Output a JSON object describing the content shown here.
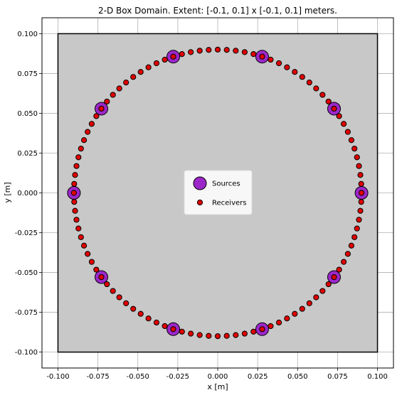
{
  "chart_data": {
    "type": "scatter",
    "title": "2-D Box Domain. Extent: [-0.1, 0.1] x [-0.1, 0.1] meters.",
    "xlabel": "x [m]",
    "ylabel": "y [m]",
    "xlim": [
      -0.11,
      0.11
    ],
    "ylim": [
      -0.11,
      0.11
    ],
    "xticks": [
      "-0.100",
      "-0.075",
      "-0.050",
      "-0.025",
      "0.000",
      "0.025",
      "0.050",
      "0.075",
      "0.100"
    ],
    "yticks": [
      "-0.100",
      "-0.075",
      "-0.050",
      "-0.025",
      "0.000",
      "0.025",
      "0.050",
      "0.075",
      "0.100"
    ],
    "grid": true,
    "domain_box": {
      "xmin": -0.1,
      "xmax": 0.1,
      "ymin": -0.1,
      "ymax": 0.1,
      "fill": "#c8c8c8",
      "edge": "#000000"
    },
    "legend": {
      "placement": "center",
      "entries": [
        "Sources",
        "Receivers"
      ]
    },
    "series": [
      {
        "name": "Sources",
        "marker": "circle-large",
        "color": "#9b27c9",
        "edge": "#000000",
        "layout": {
          "shape": "circle",
          "radius": 0.09,
          "count": 10,
          "start_angle_deg": 0
        }
      },
      {
        "name": "Receivers",
        "marker": "circle-small",
        "color": "#e00000",
        "edge": "#000000",
        "layout": {
          "shape": "circle",
          "radius": 0.09,
          "count": 100,
          "start_angle_deg": 0
        }
      }
    ]
  }
}
